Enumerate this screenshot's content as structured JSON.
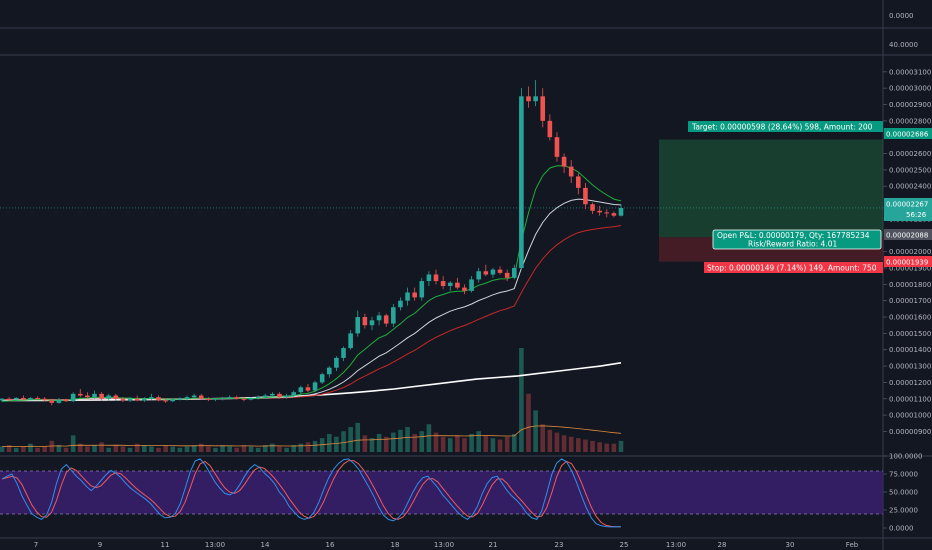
{
  "chart_data": {
    "type": "candlestick",
    "top_panel": {
      "value": "0.0000"
    },
    "volume_panel": {
      "value": "40.0000"
    },
    "price_axis": {
      "ticks": [
        "0.00003100",
        "0.00003000",
        "0.00002900",
        "0.00002800",
        "0.00002600",
        "0.00002500",
        "0.00002400",
        "0.00002200",
        "0.00002000",
        "0.00001900",
        "0.00001800",
        "0.00001700",
        "0.00001600",
        "0.00001500",
        "0.00001400",
        "0.00001300",
        "0.00001200",
        "0.00001100",
        "0.00001000",
        "0.00000900"
      ],
      "ylim": [
        8.6e-06,
        3.16e-05
      ]
    },
    "badges": {
      "target": "0.00002686",
      "current": "0.00002267",
      "countdown": "56:26",
      "entry": "0.00002088",
      "stop": "0.00001939"
    },
    "position": {
      "target_label": "Target: 0.00000598 (28.64%) 598, Amount: 200",
      "pnl_label": "Open P&L: 0.00000179, Qty: 167785234",
      "rr_label": "Risk/Reward Ratio: 4.01",
      "stop_label": "Stop: 0.00000149 (7.14%) 149, Amount: 750"
    },
    "stoch_axis": {
      "ticks": [
        "100.0000",
        "75.0000",
        "50.0000",
        "25.0000",
        "0.0000"
      ]
    },
    "time_axis": {
      "labels": [
        "7",
        "9",
        "11",
        "13:00",
        "14",
        "16",
        "18",
        "13:00",
        "21",
        "23",
        "25",
        "13:00",
        "28",
        "30",
        "Feb"
      ]
    },
    "candles": [
      [
        10.9,
        11.05,
        10.8,
        11.0
      ],
      [
        11.0,
        11.1,
        10.85,
        10.95
      ],
      [
        10.95,
        11.1,
        10.85,
        11.05
      ],
      [
        11.05,
        11.2,
        10.9,
        10.95
      ],
      [
        10.95,
        11.1,
        10.9,
        11.05
      ],
      [
        11.05,
        11.15,
        10.9,
        11.0
      ],
      [
        11.0,
        11.1,
        10.85,
        10.9
      ],
      [
        10.9,
        11.0,
        10.6,
        10.75
      ],
      [
        10.75,
        11.05,
        10.7,
        10.95
      ],
      [
        10.95,
        11.0,
        10.8,
        10.85
      ],
      [
        10.85,
        11.4,
        10.8,
        11.3
      ],
      [
        11.3,
        11.6,
        11.1,
        11.2
      ],
      [
        11.2,
        11.4,
        11.0,
        11.1
      ],
      [
        11.1,
        11.5,
        11.0,
        11.3
      ],
      [
        11.3,
        11.4,
        10.9,
        11.0
      ],
      [
        11.0,
        11.3,
        10.9,
        11.2
      ],
      [
        11.2,
        11.3,
        10.9,
        11.0
      ],
      [
        11.0,
        11.1,
        10.8,
        10.9
      ],
      [
        10.9,
        11.1,
        10.8,
        11.0
      ],
      [
        11.0,
        11.2,
        10.85,
        10.9
      ],
      [
        10.9,
        11.1,
        10.8,
        11.0
      ],
      [
        11.0,
        11.3,
        10.9,
        11.1
      ],
      [
        11.1,
        11.2,
        10.85,
        10.9
      ],
      [
        10.9,
        11.0,
        10.75,
        10.85
      ],
      [
        10.85,
        11.0,
        10.8,
        10.95
      ],
      [
        10.95,
        11.1,
        10.9,
        11.0
      ],
      [
        11.0,
        11.2,
        10.9,
        11.1
      ],
      [
        11.1,
        11.3,
        11.0,
        11.2
      ],
      [
        11.2,
        11.3,
        10.95,
        11.0
      ],
      [
        11.0,
        11.1,
        10.85,
        10.95
      ],
      [
        10.95,
        11.05,
        10.85,
        11.0
      ],
      [
        11.0,
        11.1,
        10.9,
        11.05
      ],
      [
        11.05,
        11.2,
        10.95,
        11.1
      ],
      [
        11.1,
        11.2,
        10.95,
        11.0
      ],
      [
        11.0,
        11.1,
        10.85,
        10.95
      ],
      [
        10.95,
        11.1,
        10.9,
        11.05
      ],
      [
        11.05,
        11.2,
        10.95,
        11.1
      ],
      [
        11.1,
        11.3,
        11.0,
        11.2
      ],
      [
        11.2,
        11.4,
        11.1,
        11.3
      ],
      [
        11.3,
        11.4,
        11.0,
        11.1
      ],
      [
        11.1,
        11.3,
        11.0,
        11.2
      ],
      [
        11.2,
        11.5,
        11.1,
        11.4
      ],
      [
        11.4,
        11.8,
        11.3,
        11.7
      ],
      [
        11.7,
        11.9,
        11.4,
        11.5
      ],
      [
        11.5,
        12.1,
        11.4,
        12.0
      ],
      [
        12.0,
        12.6,
        11.9,
        12.5
      ],
      [
        12.5,
        13.0,
        12.3,
        12.9
      ],
      [
        12.9,
        13.6,
        12.7,
        13.5
      ],
      [
        13.5,
        14.2,
        13.3,
        14.1
      ],
      [
        14.1,
        15.2,
        14.0,
        15.0
      ],
      [
        15.0,
        16.4,
        14.8,
        16.0
      ],
      [
        16.0,
        16.2,
        15.3,
        15.5
      ],
      [
        15.5,
        16.0,
        15.2,
        15.8
      ],
      [
        15.8,
        16.3,
        15.5,
        16.1
      ],
      [
        16.1,
        16.2,
        15.4,
        15.6
      ],
      [
        15.6,
        16.8,
        15.4,
        16.6
      ],
      [
        16.6,
        17.2,
        16.4,
        17.0
      ],
      [
        17.0,
        17.8,
        16.7,
        17.5
      ],
      [
        17.5,
        17.8,
        17.0,
        17.2
      ],
      [
        17.2,
        18.4,
        17.0,
        18.2
      ],
      [
        18.2,
        18.8,
        17.9,
        18.6
      ],
      [
        18.6,
        18.9,
        18.0,
        18.2
      ],
      [
        18.2,
        18.5,
        17.7,
        17.9
      ],
      [
        17.9,
        18.2,
        17.6,
        18.1
      ],
      [
        18.1,
        18.4,
        17.7,
        17.8
      ],
      [
        17.8,
        18.0,
        17.4,
        17.6
      ],
      [
        17.6,
        18.5,
        17.5,
        18.3
      ],
      [
        18.3,
        19.0,
        18.1,
        18.8
      ],
      [
        18.8,
        19.2,
        18.5,
        18.6
      ],
      [
        18.6,
        19.0,
        18.4,
        18.9
      ],
      [
        18.9,
        19.1,
        18.6,
        18.7
      ],
      [
        18.7,
        18.9,
        18.2,
        18.4
      ],
      [
        18.4,
        19.2,
        18.3,
        19.0
      ],
      [
        19.0,
        30.0,
        18.9,
        29.5
      ],
      [
        29.5,
        30.1,
        28.8,
        29.2
      ],
      [
        29.2,
        30.5,
        28.9,
        29.5
      ],
      [
        29.5,
        30.0,
        27.6,
        28.0
      ],
      [
        28.0,
        28.4,
        26.8,
        27.0
      ],
      [
        27.0,
        27.3,
        25.5,
        25.8
      ],
      [
        25.8,
        26.0,
        24.8,
        25.2
      ],
      [
        25.2,
        25.6,
        24.2,
        24.6
      ],
      [
        24.6,
        24.8,
        23.5,
        23.9
      ],
      [
        23.9,
        24.2,
        22.6,
        22.9
      ],
      [
        22.9,
        23.0,
        22.3,
        22.5
      ],
      [
        22.5,
        22.8,
        22.2,
        22.4
      ],
      [
        22.4,
        22.6,
        22.1,
        22.35
      ],
      [
        22.35,
        22.45,
        22.1,
        22.2
      ],
      [
        22.2,
        22.9,
        22.15,
        22.67
      ]
    ],
    "indicators": {
      "ema_fast_start": 10.8,
      "ema_mid_start": 10.9,
      "ema_slow_start": 10.95,
      "ma_long": [
        10.9,
        10.9,
        10.9,
        10.92,
        10.92,
        10.93,
        10.94,
        10.95,
        10.97,
        10.98,
        11.0,
        11.02,
        11.05,
        11.1,
        11.15,
        11.2,
        11.28,
        11.37,
        11.48,
        11.6,
        11.75,
        11.9,
        12.05,
        12.2,
        12.3,
        12.4,
        12.55,
        12.7,
        12.85,
        13.0,
        13.2
      ]
    },
    "volume": [
      0.4,
      0.5,
      0.3,
      0.4,
      0.6,
      0.3,
      0.4,
      0.8,
      0.5,
      0.3,
      1.2,
      0.6,
      0.4,
      0.5,
      0.7,
      0.3,
      0.5,
      0.4,
      0.3,
      0.6,
      0.5,
      0.4,
      0.3,
      0.5,
      0.4,
      0.3,
      0.4,
      0.5,
      0.6,
      0.4,
      0.3,
      0.5,
      0.4,
      0.3,
      0.5,
      0.4,
      0.3,
      0.5,
      0.6,
      0.4,
      0.3,
      0.5,
      0.6,
      0.7,
      0.8,
      1.0,
      1.3,
      1.1,
      1.5,
      1.8,
      2.1,
      1.2,
      1.0,
      1.3,
      1.1,
      1.4,
      1.6,
      1.8,
      1.3,
      1.5,
      2.0,
      1.4,
      1.1,
      1.0,
      1.2,
      1.0,
      1.3,
      1.5,
      1.2,
      1.0,
      0.9,
      1.1,
      1.3,
      7.5,
      4.2,
      3.0,
      2.0,
      1.6,
      1.4,
      1.2,
      1.1,
      1.0,
      0.9,
      0.8,
      0.7,
      0.6,
      0.6,
      0.8
    ],
    "stoch": [
      68,
      72,
      75,
      62,
      45,
      32,
      20,
      15,
      12,
      18,
      35,
      62,
      82,
      88,
      80,
      72,
      66,
      58,
      52,
      58,
      66,
      74,
      80,
      76,
      70,
      62,
      55,
      50,
      45,
      40,
      34,
      26,
      18,
      14,
      15,
      20,
      34,
      55,
      78,
      93,
      96,
      88,
      76,
      64,
      55,
      48,
      46,
      50,
      60,
      72,
      82,
      88,
      84,
      76,
      70,
      62,
      50,
      42,
      30,
      22,
      15,
      12,
      14,
      22,
      36,
      54,
      70,
      82,
      90,
      95,
      96,
      90,
      82,
      70,
      58,
      45,
      30,
      18,
      12,
      10,
      14,
      22,
      36,
      50,
      62,
      70,
      72,
      64,
      56,
      46,
      38,
      30,
      22,
      16,
      12,
      18,
      30,
      48,
      62,
      70,
      72,
      62,
      52,
      44,
      38,
      30,
      20,
      14,
      12,
      24,
      48,
      74,
      90,
      96,
      92,
      80,
      64,
      45,
      28,
      14,
      6,
      3,
      2,
      1.5,
      1.5,
      2
    ]
  }
}
